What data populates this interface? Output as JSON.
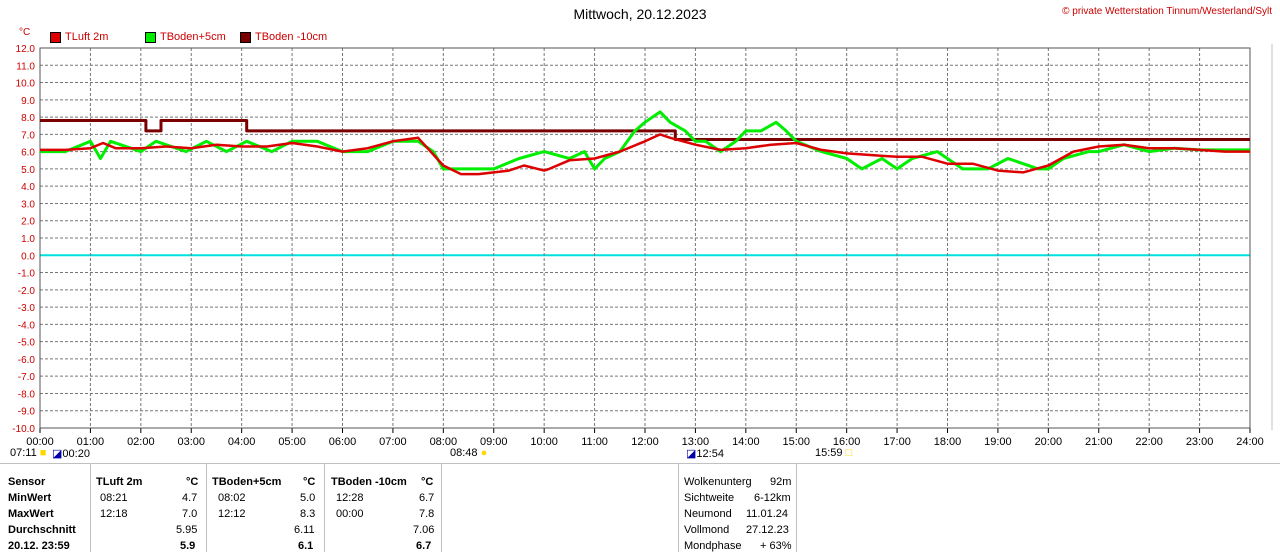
{
  "header": {
    "title": "Mittwoch, 20.12.2023",
    "credit": "© private Wetterstation Tinnum/Westerland/Sylt",
    "unit": "°C"
  },
  "chart_data": {
    "type": "line",
    "title": "Mittwoch, 20.12.2023",
    "ylabel": "°C",
    "ylim": [
      -10,
      12
    ],
    "xlim": [
      "00:00",
      "24:00"
    ],
    "y_ticks": [
      "12.0",
      "11.0",
      "10.0",
      "9.0",
      "8.0",
      "7.0",
      "6.0",
      "5.0",
      "4.0",
      "3.0",
      "2.0",
      "1.0",
      "0.0",
      "-1.0",
      "-2.0",
      "-3.0",
      "-4.0",
      "-5.0",
      "-6.0",
      "-7.0",
      "-8.0",
      "-9.0",
      "-10.0"
    ],
    "x_ticks": [
      "00:00",
      "01:00",
      "02:00",
      "03:00",
      "04:00",
      "05:00",
      "06:00",
      "07:00",
      "08:00",
      "09:00",
      "10:00",
      "11:00",
      "12:00",
      "13:00",
      "14:00",
      "15:00",
      "16:00",
      "17:00",
      "18:00",
      "19:00",
      "20:00",
      "21:00",
      "22:00",
      "23:00",
      "24:00"
    ],
    "grid": true,
    "legend_position": "top-left",
    "series": [
      {
        "name": "TLuft 2m",
        "color": "#dd0000",
        "x": [
          0,
          0.5,
          1,
          1.25,
          1.5,
          2,
          2.5,
          3,
          3.5,
          4,
          4.5,
          5,
          5.5,
          6,
          6.5,
          7,
          7.5,
          8,
          8.35,
          8.7,
          9,
          9.3,
          9.6,
          10,
          10.1,
          10.5,
          11,
          11.5,
          12,
          12.3,
          12.5,
          13,
          13.5,
          14,
          14.5,
          15,
          15.5,
          16,
          16.5,
          17,
          17.5,
          18,
          18.5,
          19,
          19.5,
          20,
          20.5,
          21,
          21.5,
          22,
          22.5,
          23,
          23.5,
          24
        ],
        "values": [
          6.1,
          6.1,
          6.2,
          6.5,
          6.2,
          6.2,
          6.3,
          6.2,
          6.4,
          6.3,
          6.3,
          6.5,
          6.3,
          6.0,
          6.2,
          6.6,
          6.8,
          5.2,
          4.7,
          4.7,
          4.8,
          4.9,
          5.2,
          4.9,
          5.0,
          5.5,
          5.6,
          6.0,
          6.6,
          7.0,
          6.8,
          6.4,
          6.1,
          6.2,
          6.4,
          6.5,
          6.1,
          5.9,
          5.8,
          5.7,
          5.7,
          5.3,
          5.3,
          4.9,
          4.8,
          5.2,
          6.0,
          6.3,
          6.4,
          6.2,
          6.2,
          6.1,
          6.0,
          6.0
        ]
      },
      {
        "name": "TBoden+5cm",
        "color": "#00ee00",
        "x": [
          0,
          0.5,
          1,
          1.2,
          1.4,
          2,
          2.3,
          2.9,
          3.3,
          3.7,
          4.1,
          4.6,
          5,
          5.5,
          6,
          6.5,
          7,
          7.5,
          7.8,
          8,
          9,
          9.5,
          10,
          10.5,
          10.8,
          11,
          11.2,
          11.5,
          11.8,
          12,
          12.3,
          12.5,
          12.8,
          13,
          13.2,
          13.5,
          13.8,
          14,
          14.3,
          14.6,
          14.8,
          15,
          15.5,
          16,
          16.3,
          16.7,
          17,
          17.3,
          17.8,
          18.3,
          18.8,
          19.2,
          19.8,
          20,
          20.3,
          20.8,
          21,
          21.5,
          22,
          22.5,
          23,
          23.5,
          24
        ],
        "values": [
          6.0,
          6.0,
          6.6,
          5.6,
          6.6,
          6.0,
          6.6,
          6.0,
          6.6,
          6.0,
          6.6,
          6.0,
          6.6,
          6.6,
          6.0,
          6.0,
          6.6,
          6.6,
          6.0,
          5.0,
          5.0,
          5.6,
          6.0,
          5.6,
          6.0,
          5.0,
          5.6,
          6.0,
          7.2,
          7.7,
          8.3,
          7.7,
          7.2,
          6.6,
          6.6,
          6.0,
          6.6,
          7.2,
          7.2,
          7.7,
          7.2,
          6.6,
          6.0,
          5.6,
          5.0,
          5.6,
          5.0,
          5.6,
          6.0,
          5.0,
          5.0,
          5.6,
          5.0,
          5.0,
          5.6,
          6.0,
          6.0,
          6.4,
          6.0,
          6.2,
          6.1,
          6.1,
          6.1
        ]
      },
      {
        "name": "TBoden -10cm",
        "color": "#7a0000",
        "x": [
          0,
          2.1,
          2.1,
          2.4,
          2.4,
          4.1,
          4.1,
          12.6,
          12.6,
          24
        ],
        "values": [
          7.8,
          7.8,
          7.2,
          7.2,
          7.8,
          7.8,
          7.2,
          7.2,
          6.7,
          6.7
        ]
      }
    ]
  },
  "events": [
    {
      "label": "07:11",
      "icon": "sunrise-icon"
    },
    {
      "label": "00:20",
      "icon": "moon-icon"
    },
    {
      "label": "08:48",
      "icon": "sun-icon"
    },
    {
      "label": "12:54",
      "icon": "moon-icon"
    },
    {
      "label": "15:59",
      "icon": "sunset-icon"
    }
  ],
  "stats": {
    "row_labels": [
      "Sensor",
      "MinWert",
      "MaxWert",
      "Durchschnitt",
      "20.12. 23:59"
    ],
    "sensors": [
      {
        "name": "TLuft 2m",
        "unit": "°C",
        "min_time": "08:21",
        "min": "4.7",
        "max_time": "12:18",
        "max": "7.0",
        "avg": "5.95",
        "current": "5.9"
      },
      {
        "name": "TBoden+5cm",
        "unit": "°C",
        "min_time": "08:02",
        "min": "5.0",
        "max_time": "12:12",
        "max": "8.3",
        "avg": "6.11",
        "current": "6.1"
      },
      {
        "name": "TBoden -10cm",
        "unit": "°C",
        "min_time": "12:28",
        "min": "6.7",
        "max_time": "00:00",
        "max": "7.8",
        "avg": "7.06",
        "current": "6.7"
      }
    ]
  },
  "astro": [
    {
      "label": "Wolkenunterg",
      "value": "92m"
    },
    {
      "label": "Sichtweite",
      "value": "6-12km"
    },
    {
      "label": "Neumond",
      "value": "11.01.24"
    },
    {
      "label": "Vollmond",
      "value": "27.12.23"
    },
    {
      "label": "Mondphase",
      "value": "+ 63%"
    }
  ]
}
